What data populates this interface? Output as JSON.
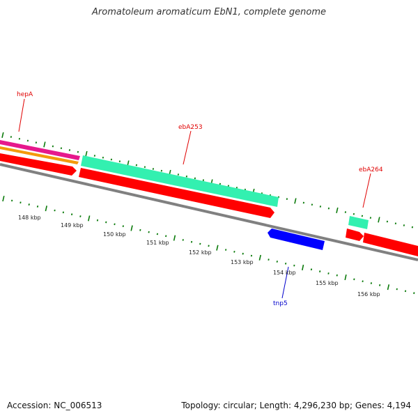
{
  "title": "Aromatoleum aromaticum EbN1, complete genome",
  "footer": {
    "accession": "Accession: NC_006513",
    "summary": "Topology: circular; Length: 4,296,230 bp; Genes: 4,194"
  },
  "colors": {
    "backbone": "#808080",
    "tick": "#0a7a0a",
    "red": "#ff0000",
    "aqua": "#33f0b0",
    "blue": "#0000ff",
    "magenta": "#e6198c",
    "orange": "#f39a0c",
    "label_red": "#e00000",
    "label_blue": "#0000cc"
  },
  "scale_labels": [
    "148 kbp",
    "149 kbp",
    "150 kbp",
    "151 kbp",
    "152 kbp",
    "153 kbp",
    "154 kbp",
    "155 kbp",
    "156 kbp"
  ],
  "gene_labels": {
    "hepA": "hepA",
    "ebA253": "ebA253",
    "ebA264": "ebA264",
    "tnp5": "tnp5"
  }
}
